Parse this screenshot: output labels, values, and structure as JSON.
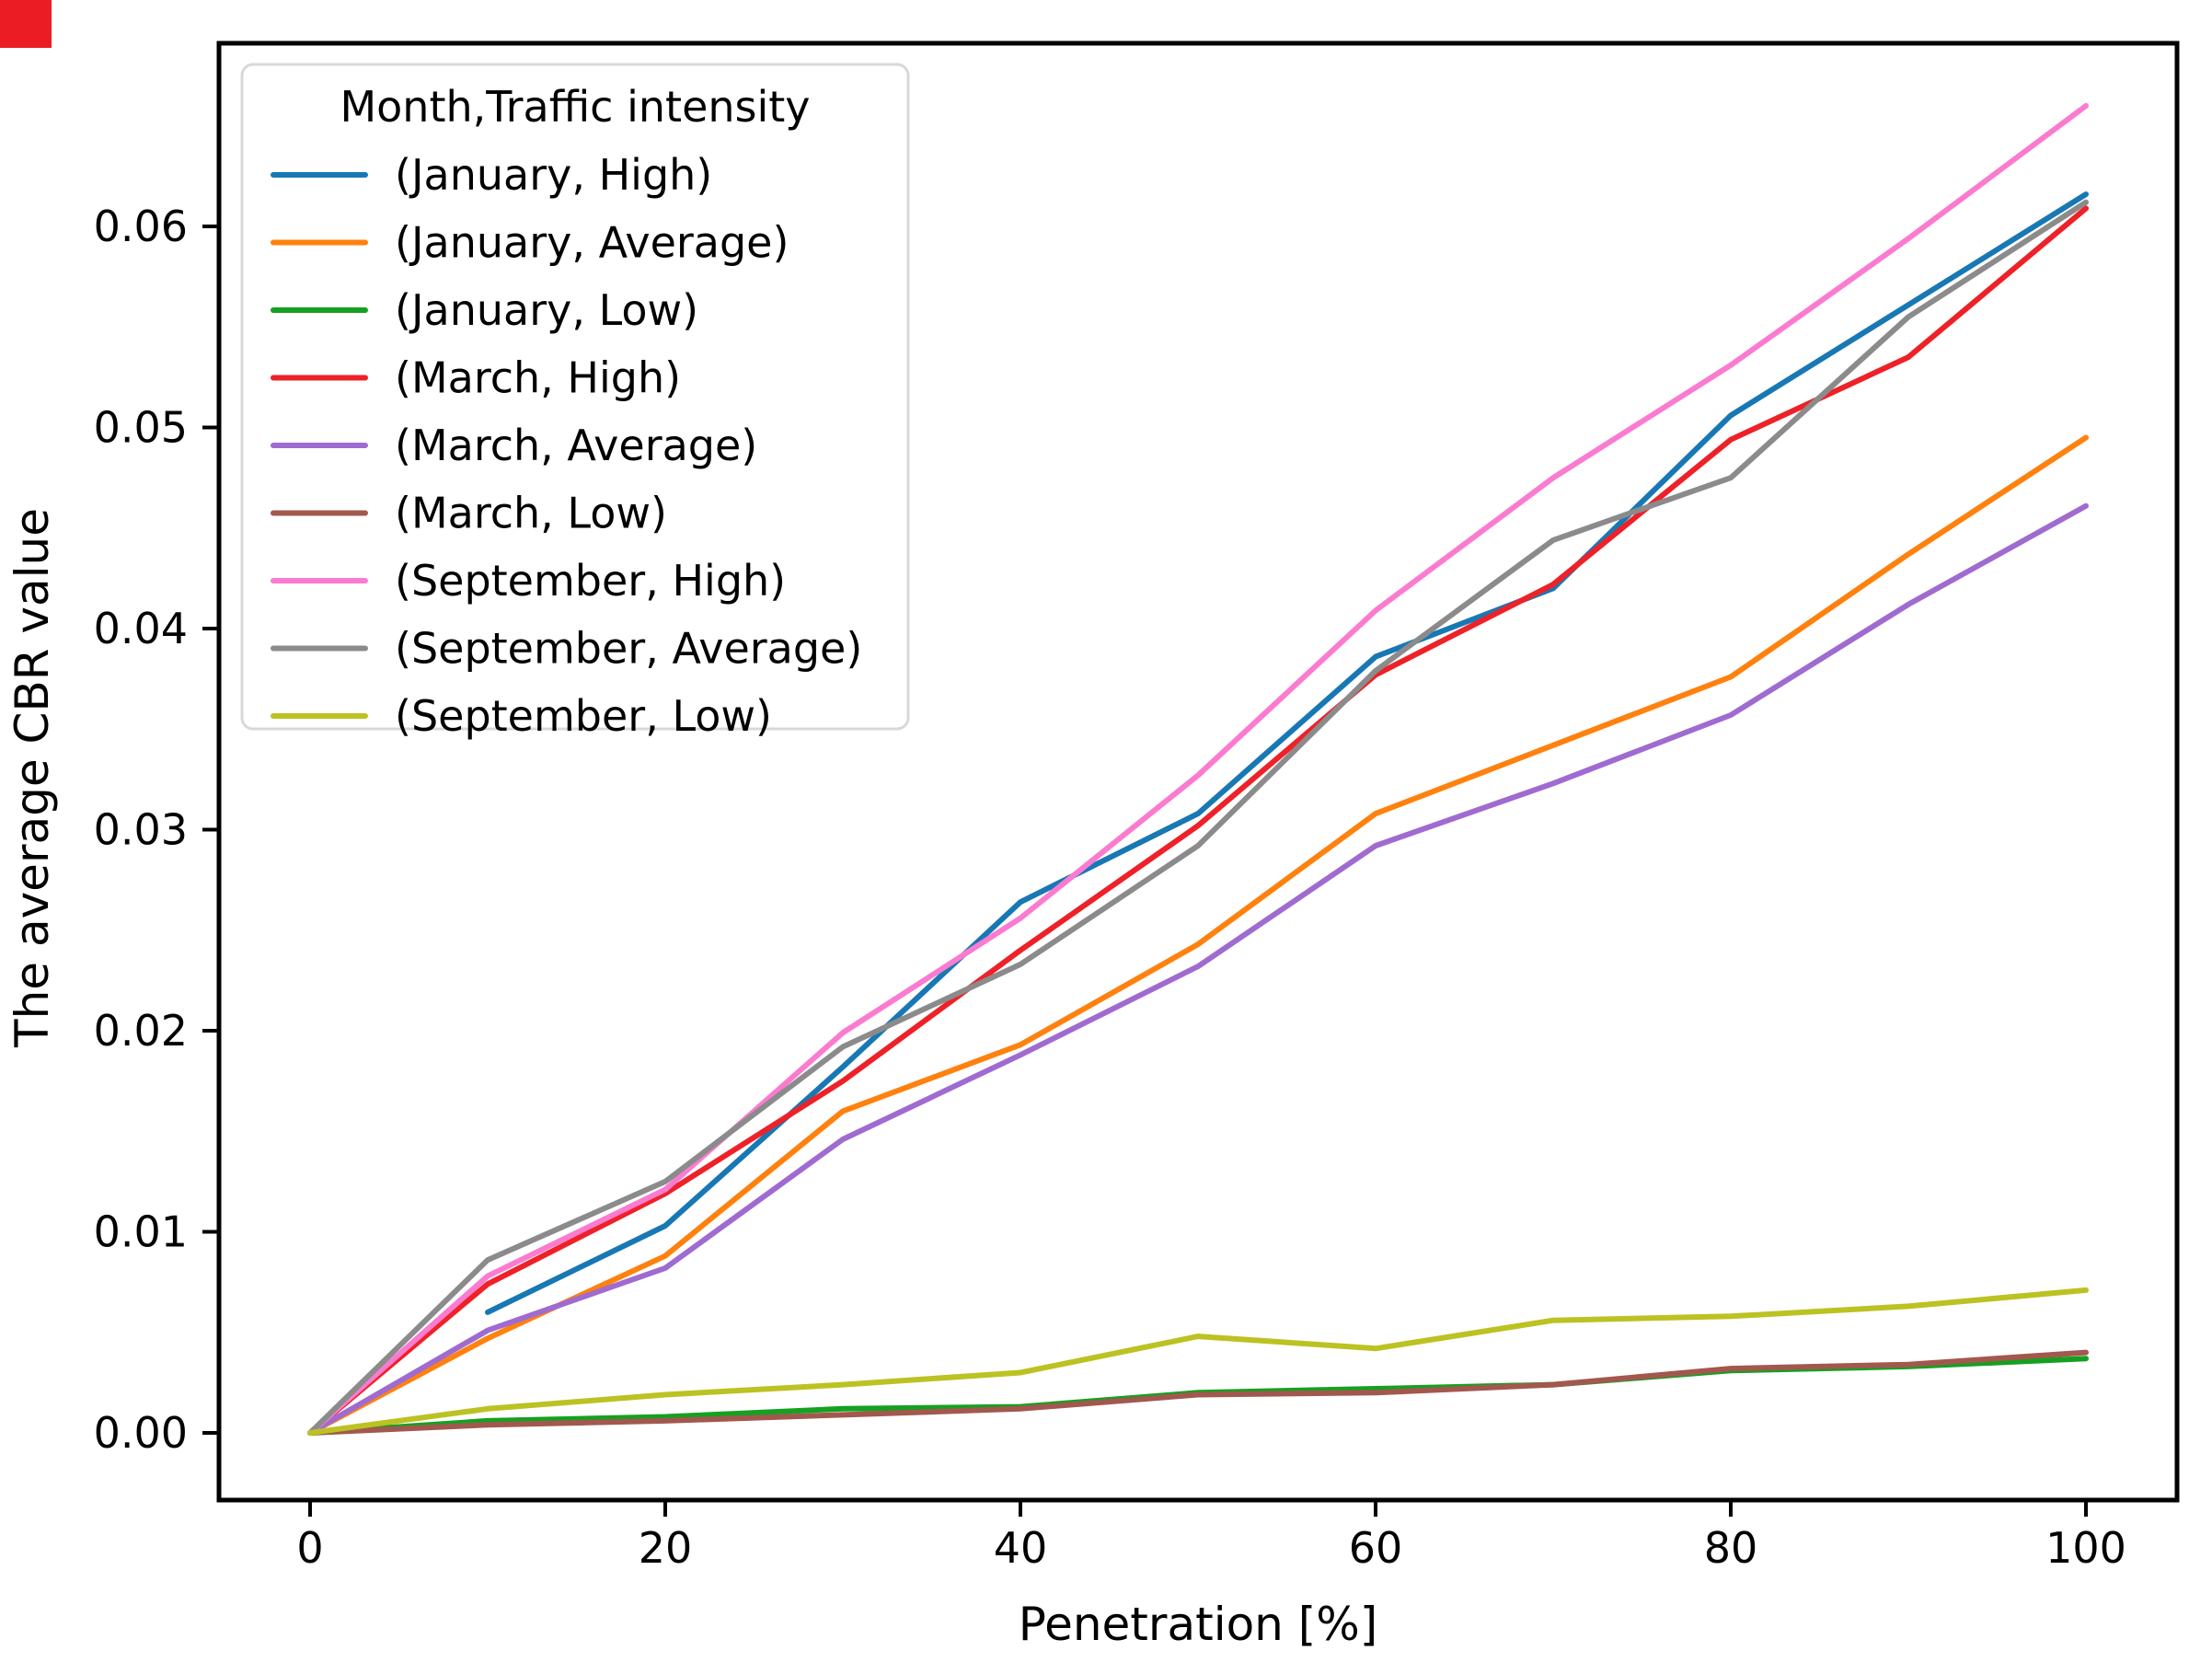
{
  "figure": {
    "xlabel": "Penetration [%]",
    "ylabel": "The average CBR value",
    "background_color": "#ffffff",
    "spine_color": "#000000",
    "corner_marker_color": "#ec1c24"
  },
  "legend": {
    "title": "Month,Traffic intensity",
    "border_color": "#d8d8d8",
    "background_color": "#ffffff"
  },
  "chart_data": {
    "type": "line",
    "title": "",
    "xlabel": "Penetration [%]",
    "ylabel": "The average CBR value",
    "x_ticks": [
      0,
      20,
      40,
      60,
      80,
      100
    ],
    "y_ticks": [
      0.0,
      0.01,
      0.02,
      0.03,
      0.04,
      0.05,
      0.06
    ],
    "xlim": [
      -5.13,
      105.13
    ],
    "ylim": [
      -0.00334,
      0.06911
    ],
    "grid": false,
    "legend_position": "upper-left",
    "legend_title": "Month,Traffic intensity",
    "x": [
      0,
      10,
      20,
      30,
      40,
      50,
      60,
      70,
      80,
      90,
      100
    ],
    "series": [
      {
        "name": "(January, High)",
        "color": "#1878b4",
        "x": [
          10,
          20,
          30,
          40,
          50,
          60,
          70,
          80,
          90,
          100
        ],
        "y": [
          0.006,
          0.0103,
          0.0182,
          0.0264,
          0.0308,
          0.0386,
          0.042,
          0.0506,
          0.0561,
          0.0616
        ]
      },
      {
        "name": "(January, Average)",
        "color": "#ff810e",
        "x": [
          0,
          10,
          20,
          30,
          40,
          50,
          60,
          70,
          80,
          90,
          100
        ],
        "y": [
          0.0,
          0.0047,
          0.0088,
          0.016,
          0.0193,
          0.0243,
          0.0308,
          0.0342,
          0.0376,
          0.0437,
          0.0495
        ]
      },
      {
        "name": "(January, Low)",
        "color": "#16a021",
        "x": [
          0,
          10,
          20,
          30,
          40,
          50,
          60,
          70,
          80,
          90,
          100
        ],
        "y": [
          0.0,
          0.0006,
          0.0008,
          0.0012,
          0.0013,
          0.002,
          0.0022,
          0.0024,
          0.0031,
          0.0033,
          0.0037
        ]
      },
      {
        "name": "(March, High)",
        "color": "#ee2128",
        "x": [
          0,
          10,
          20,
          30,
          40,
          50,
          60,
          70,
          80,
          90,
          100
        ],
        "y": [
          0.0,
          0.0074,
          0.0119,
          0.0175,
          0.024,
          0.0302,
          0.0377,
          0.0422,
          0.0494,
          0.0535,
          0.0609
        ]
      },
      {
        "name": "(March, Average)",
        "color": "#a06bd0",
        "x": [
          0,
          10,
          20,
          30,
          40,
          50,
          60,
          70,
          80,
          90,
          100
        ],
        "y": [
          0.0,
          0.0051,
          0.0082,
          0.0146,
          0.0188,
          0.0232,
          0.0292,
          0.0323,
          0.0357,
          0.0412,
          0.0461
        ]
      },
      {
        "name": "(March, Low)",
        "color": "#a2584e",
        "x": [
          0,
          10,
          20,
          30,
          40,
          50,
          60,
          70,
          80,
          90,
          100
        ],
        "y": [
          0.0,
          0.0004,
          0.0006,
          0.0009,
          0.0012,
          0.0019,
          0.002,
          0.0024,
          0.0032,
          0.0034,
          0.004
        ]
      },
      {
        "name": "(September, High)",
        "color": "#fb7bd0",
        "x": [
          0,
          10,
          20,
          30,
          40,
          50,
          60,
          70,
          80,
          90,
          100
        ],
        "y": [
          0.0,
          0.0078,
          0.0121,
          0.0199,
          0.0256,
          0.0327,
          0.0409,
          0.0475,
          0.0531,
          0.0594,
          0.066
        ]
      },
      {
        "name": "(September, Average)",
        "color": "#8b8b8b",
        "x": [
          0,
          10,
          20,
          30,
          40,
          50,
          60,
          70,
          80,
          90,
          100
        ],
        "y": [
          0.0,
          0.0086,
          0.0125,
          0.0192,
          0.0233,
          0.0292,
          0.0379,
          0.0444,
          0.0475,
          0.0555,
          0.0612
        ]
      },
      {
        "name": "(September, Low)",
        "color": "#bcc222",
        "x": [
          0,
          10,
          20,
          30,
          40,
          50,
          60,
          70,
          80,
          90,
          100
        ],
        "y": [
          0.0,
          0.0012,
          0.0019,
          0.0024,
          0.003,
          0.0048,
          0.0042,
          0.0056,
          0.0058,
          0.0063,
          0.0071
        ]
      }
    ]
  }
}
